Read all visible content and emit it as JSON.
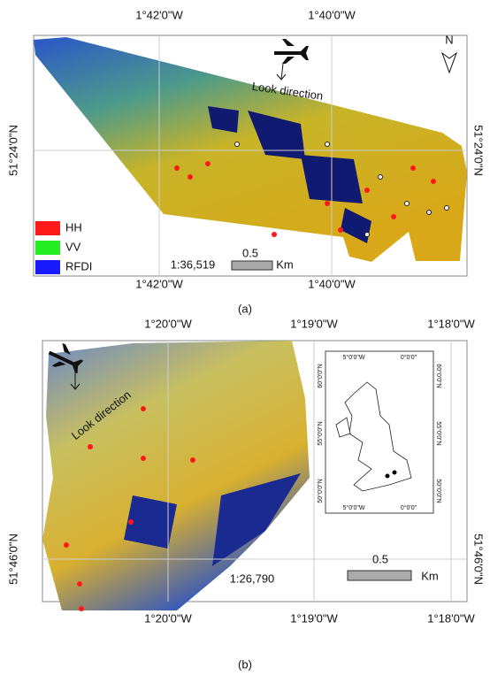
{
  "panel_a": {
    "label": "(a)",
    "top_longitudes": [
      "1°42'0\"W",
      "1°40'0\"W"
    ],
    "bottom_longitudes": [
      "1°42'0\"W",
      "1°40'0\"W"
    ],
    "left_latitude": "51°24'0\"N",
    "right_latitude": "51°24'0\"N",
    "north": "N",
    "look_direction": "Look direction",
    "legend": [
      {
        "name": "HH",
        "color": "#ff1a1a"
      },
      {
        "name": "VV",
        "color": "#22ee22"
      },
      {
        "name": "RFDI",
        "color": "#1a1aff"
      }
    ],
    "scale_ratio": "1:36,519",
    "scale_length": "0.5",
    "scale_unit": "Km"
  },
  "panel_b": {
    "label": "(b)",
    "top_longitudes": [
      "1°20'0\"W",
      "1°19'0\"W",
      "1°18'0\"W"
    ],
    "bottom_longitudes": [
      "1°20'0\"W",
      "1°19'0\"W",
      "1°18'0\"W"
    ],
    "left_latitude": "51°46'0\"N",
    "right_latitude": "51°46'0\"N",
    "look_direction": "Look direction",
    "scale_ratio": "1:26,790",
    "scale_length": "0.5",
    "scale_unit": "Km",
    "inset": {
      "top_longitudes": [
        "5°0'0\"W",
        "0°0'0\""
      ],
      "bottom_longitudes": [
        "5°0'0\"W",
        "0°0'0\""
      ],
      "left_latitudes": [
        "60°0'0\"N",
        "55°0'0\"N",
        "50°0'0\"N"
      ],
      "right_latitudes": [
        "60°0'0\"N",
        "55°0'0\"N",
        "50°0'0\"N"
      ]
    }
  }
}
